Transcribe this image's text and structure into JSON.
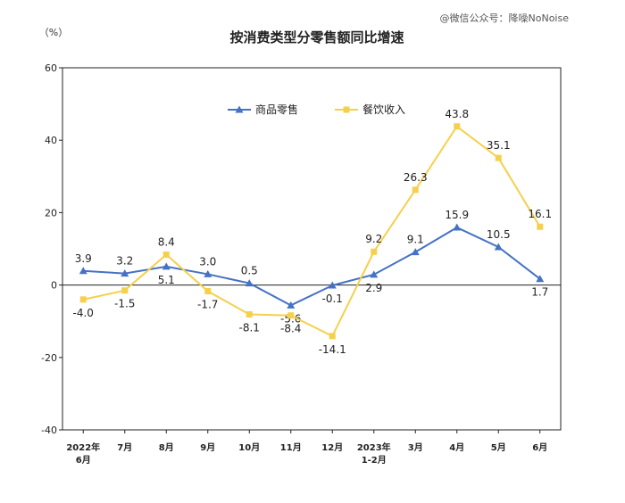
{
  "watermark": "@微信公众号：降噪NoNoise",
  "chart_data": {
    "type": "line",
    "title": "按消费类型分零售额同比增速",
    "unit": "（%）",
    "ylim": [
      -40,
      60
    ],
    "yticks": [
      -40,
      -20,
      0,
      20,
      40,
      60
    ],
    "categories": [
      [
        "2022年",
        "6月"
      ],
      [
        "7月"
      ],
      [
        "8月"
      ],
      [
        "9月"
      ],
      [
        "10月"
      ],
      [
        "11月"
      ],
      [
        "12月"
      ],
      [
        "2023年",
        "1-2月"
      ],
      [
        "3月"
      ],
      [
        "4月"
      ],
      [
        "5月"
      ],
      [
        "6月"
      ]
    ],
    "series": [
      {
        "name": "商品零售",
        "color": "#4472C4",
        "marker": "triangle",
        "values": [
          3.9,
          3.2,
          5.1,
          3.0,
          0.5,
          -5.6,
          -0.1,
          2.9,
          9.1,
          15.9,
          10.5,
          1.7
        ],
        "labels": [
          "3.9",
          "3.2",
          "5.1",
          "3.0",
          "0.5",
          "-5.6",
          "-0.1",
          "2.9",
          "9.1",
          "15.9",
          "10.5",
          "1.7"
        ]
      },
      {
        "name": "餐饮收入",
        "color": "#F5D04C",
        "marker": "square",
        "values": [
          -4.0,
          -1.5,
          8.4,
          -1.7,
          -8.1,
          -8.4,
          -14.1,
          9.2,
          26.3,
          43.8,
          35.1,
          16.1
        ],
        "labels": [
          "-4.0",
          "-1.5",
          "8.4",
          "-1.7",
          "-8.1",
          "-8.4",
          "-14.1",
          "9.2",
          "26.3",
          "43.8",
          "35.1",
          "16.1"
        ]
      }
    ]
  }
}
